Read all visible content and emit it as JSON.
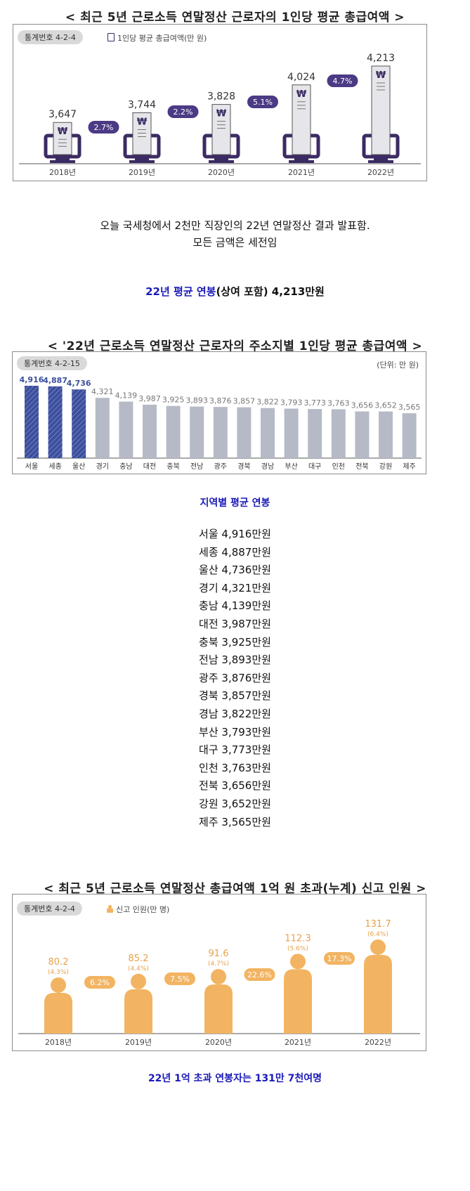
{
  "chart1": {
    "title": "< 최근 5년 근로소득 연말정산 근로자의 1인당 평균 총급여액 >",
    "stat_no": "통계번호 4-2-4",
    "legend": "1인당 평균 총급여액(만 원)",
    "colors": {
      "receipt": "#e6e6ea",
      "monitor": "#3b2b63",
      "pill": "#4b3a84"
    }
  },
  "chart_data": [
    {
      "type": "bar",
      "title": "< 최근 5년 근로소득 연말정산 근로자의 1인당 평균 총급여액 >",
      "categories": [
        "2018년",
        "2019년",
        "2020년",
        "2021년",
        "2022년"
      ],
      "values": [
        3647,
        3744,
        3828,
        4024,
        4213
      ],
      "value_labels": [
        "3,647",
        "3,744",
        "3,828",
        "4,024",
        "4,213"
      ],
      "growth": [
        "2.7%",
        "2.2%",
        "5.1%",
        "4.7%"
      ],
      "series": [
        {
          "name": "1인당 평균 총급여액(만 원)",
          "values": [
            3647,
            3744,
            3828,
            4024,
            4213
          ]
        }
      ],
      "ylabel": "",
      "xlabel": ""
    },
    {
      "type": "bar",
      "title": "< '22년 근로소득 연말정산 근로자의 주소지별 1인당 평균 총급여액 >",
      "categories": [
        "서울",
        "세종",
        "울산",
        "경기",
        "충남",
        "대전",
        "충북",
        "전남",
        "광주",
        "경북",
        "경남",
        "부산",
        "대구",
        "인천",
        "전북",
        "강원",
        "제주"
      ],
      "values": [
        4916,
        4887,
        4736,
        4321,
        4139,
        3987,
        3925,
        3893,
        3876,
        3857,
        3822,
        3793,
        3773,
        3763,
        3656,
        3652,
        3565
      ],
      "value_labels": [
        "4,916",
        "4,887",
        "4,736",
        "4,321",
        "4,139",
        "3,987",
        "3,925",
        "3,893",
        "3,876",
        "3,857",
        "3,822",
        "3,793",
        "3,773",
        "3,763",
        "3,656",
        "3,652",
        "3,565"
      ],
      "highlight": [
        "서울",
        "세종",
        "울산"
      ],
      "xlabel": "",
      "ylabel": ""
    },
    {
      "type": "bar",
      "title": "< 최근 5년 근로소득 연말정산 총급여액 1억 원 초과(누계) 신고 인원 >",
      "categories": [
        "2018년",
        "2019년",
        "2020년",
        "2021년",
        "2022년"
      ],
      "values": [
        80.2,
        85.2,
        91.6,
        112.3,
        131.7
      ],
      "value_labels": [
        "80.2",
        "85.2",
        "91.6",
        "112.3",
        "131.7"
      ],
      "share_labels": [
        "(4.3%)",
        "(4.4%)",
        "(4.7%)",
        "(5.6%)",
        "(6.4%)"
      ],
      "growth": [
        "6.2%",
        "7.5%",
        "22.6%",
        "17.3%"
      ],
      "series": [
        {
          "name": "신고 인원(만 명)",
          "values": [
            80.2,
            85.2,
            91.6,
            112.3,
            131.7
          ]
        }
      ],
      "xlabel": "",
      "ylabel": ""
    }
  ],
  "text1": {
    "line1": "오늘 국세청에서 2천만 직장인의 22년 연말정산 결과 발표함.",
    "line2": "모든 금액은 세전임",
    "highlight_a": "22년 평균 연봉",
    "highlight_b": "(상여 포함) 4,213만원"
  },
  "chart2": {
    "title": "< '22년 근로소득 연말정산 근로자의 주소지별 1인당 평균 총급여액 >",
    "stat_no": "통계번호 4-2-15",
    "unit": "(단위: 만 원)",
    "colors": {
      "highlight": "#3d4f9c",
      "normal": "#b5bac6"
    }
  },
  "text2": {
    "heading": "지역별 평균 연봉",
    "items": [
      "서울 4,916만원",
      "세종 4,887만원",
      "울산 4,736만원",
      "경기 4,321만원",
      "충남 4,139만원",
      "대전 3,987만원",
      "충북 3,925만원",
      "전남 3,893만원",
      "광주 3,876만원",
      "경북 3,857만원",
      "경남 3,822만원",
      "부산 3,793만원",
      "대구 3,773만원",
      "인천 3,763만원",
      "전북 3,656만원",
      "강원 3,652만원",
      "제주 3,565만원"
    ]
  },
  "chart3": {
    "title": "< 최근 5년 근로소득 연말정산 총급여액 1억 원 초과(누계) 신고 인원 >",
    "stat_no": "통계번호 4-2-4",
    "legend": "신고 인원(만 명)",
    "colors": {
      "person": "#f2b462",
      "pill": "#f2b462",
      "label": "#e8a24a"
    }
  },
  "text3": {
    "footer": "22년 1억 초과 연봉자는 131만 7천여명"
  }
}
